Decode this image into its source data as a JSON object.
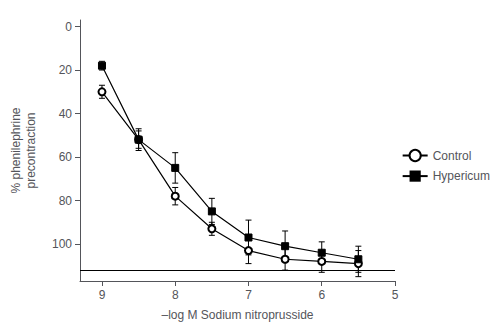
{
  "chart_data": {
    "type": "line",
    "xlabel": "–log M Sodium nitroprusside",
    "ylabel": "% phenilephrine\nprecontraction",
    "x": [
      9,
      8.5,
      8,
      7.5,
      7,
      6.5,
      6,
      5.5
    ],
    "series": [
      {
        "name": "Control",
        "color": "black",
        "marker": "emptyCircle",
        "values": [
          30,
          52,
          78,
          93,
          103,
          107,
          108,
          109
        ],
        "errors": [
          3,
          5,
          4,
          3,
          6,
          5,
          5,
          6
        ]
      },
      {
        "name": "Hypericum",
        "color": "black",
        "marker": "square",
        "values": [
          18,
          52,
          65,
          85,
          97,
          101,
          104,
          107
        ],
        "errors": [
          2,
          4,
          7,
          6,
          8,
          7,
          5,
          6
        ]
      }
    ],
    "xlim": [
      9.3,
      5.0
    ],
    "ylim": [
      117,
      -3
    ],
    "xticks": [
      9,
      8,
      7,
      6,
      5
    ],
    "yticks": [
      0,
      20,
      40,
      60,
      80,
      100
    ],
    "hline": 112,
    "grid": false,
    "legend": "right"
  }
}
